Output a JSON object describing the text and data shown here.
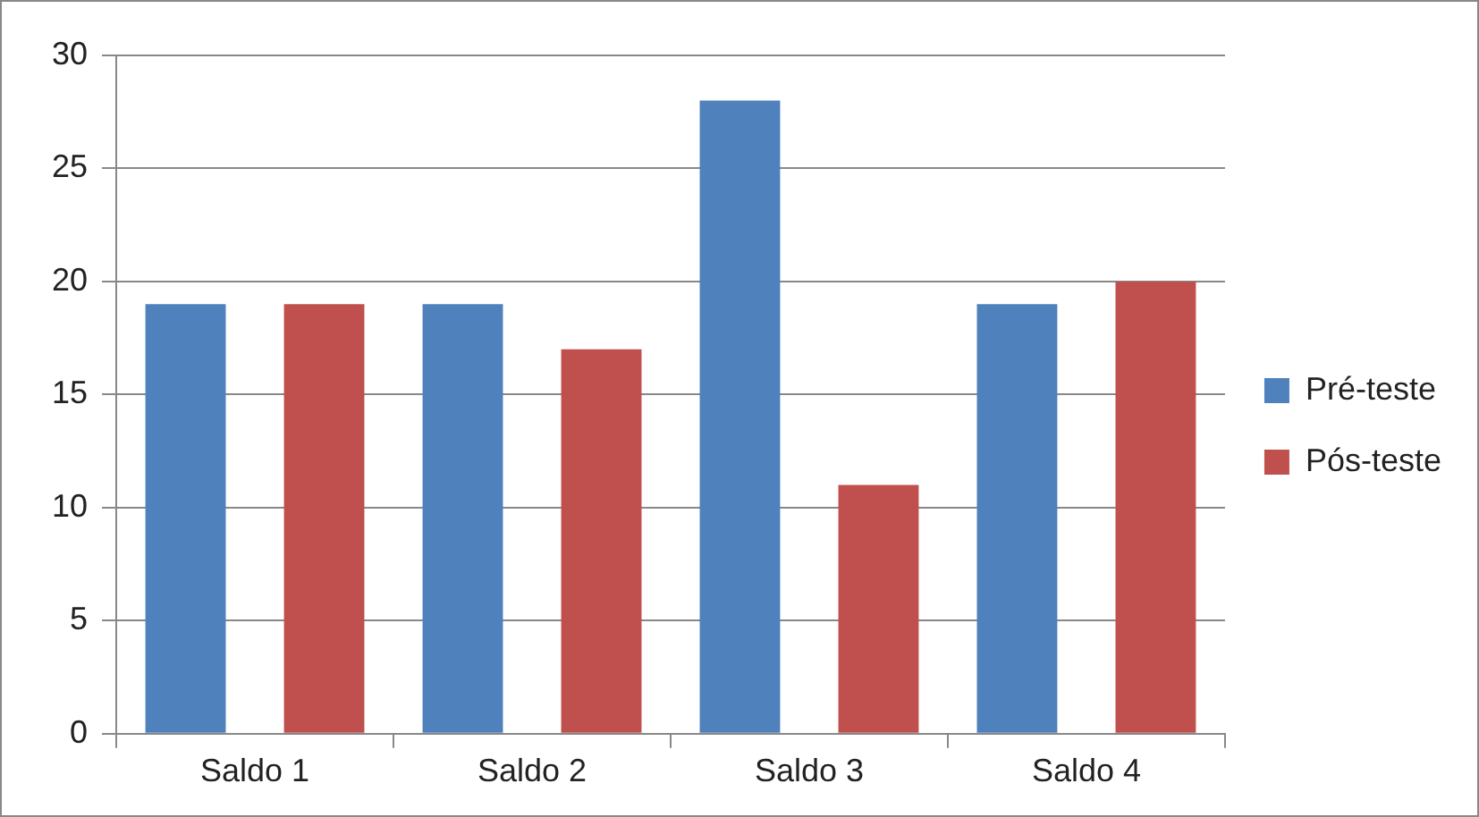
{
  "chart_data": {
    "type": "bar",
    "categories": [
      "Saldo 1",
      "Saldo 2",
      "Saldo 3",
      "Saldo 4"
    ],
    "series": [
      {
        "name": "Pré-teste",
        "color": "#4f81bd",
        "values": [
          19,
          19,
          28,
          19
        ]
      },
      {
        "name": "Pós-teste",
        "color": "#c0504d",
        "values": [
          19,
          17,
          11,
          20
        ]
      }
    ],
    "ylim": [
      0,
      30
    ],
    "yticks": [
      0,
      5,
      10,
      15,
      20,
      25,
      30
    ],
    "grid": "y",
    "legend": "right"
  }
}
